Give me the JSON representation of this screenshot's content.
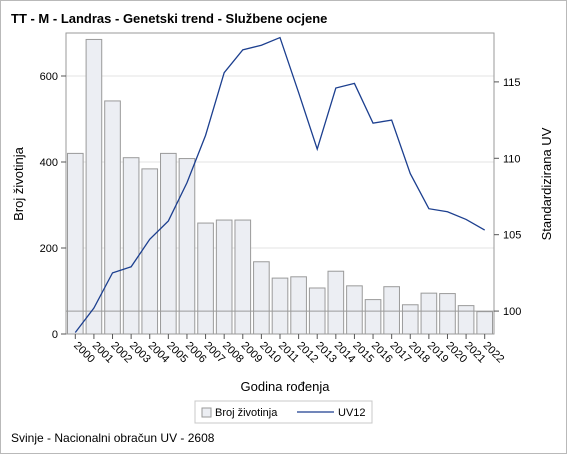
{
  "title": "TT - M - Landras - Genetski trend - Službene ocjene",
  "footer": "Svinje - Nacionalni obračun UV - 2608",
  "chart_data": {
    "type": "bar+line",
    "title": "TT - M - Landras - Genetski trend - Službene ocjene",
    "xlabel": "Godina rođenja",
    "ylabel_left": "Broj životinja",
    "ylabel_right": "Standardizirana UV",
    "categories": [
      "2000",
      "2001",
      "2002",
      "2003",
      "2004",
      "2005",
      "2006",
      "2007",
      "2008",
      "2009",
      "2010",
      "2011",
      "2012",
      "2013",
      "2014",
      "2015",
      "2016",
      "2017",
      "2018",
      "2019",
      "2020",
      "2021",
      "2022"
    ],
    "ylim_left": [
      0,
      700
    ],
    "yticks_left": [
      0,
      200,
      400,
      600
    ],
    "ylim_right": [
      98.5,
      118.2
    ],
    "yticks_right": [
      100,
      105,
      110,
      115
    ],
    "reference_line_right": 100,
    "grid": "horizontal",
    "legend_position": "bottom",
    "series": [
      {
        "name": "Broj životinja",
        "type": "bar",
        "axis": "left",
        "color": "#eceef3",
        "stroke": "#9a9a9a",
        "values": [
          420,
          685,
          542,
          410,
          384,
          420,
          408,
          258,
          265,
          265,
          168,
          130,
          133,
          107,
          146,
          112,
          80,
          110,
          68,
          95,
          94,
          66,
          52
        ]
      },
      {
        "name": "UV12",
        "type": "line",
        "axis": "right",
        "color": "#1c3f8f",
        "values": [
          98.6,
          100.2,
          102.5,
          102.9,
          104.7,
          105.9,
          108.4,
          111.5,
          115.6,
          117.1,
          117.4,
          117.9,
          114.3,
          110.6,
          114.6,
          114.9,
          112.3,
          112.5,
          109.0,
          106.7,
          106.5,
          106.0,
          105.3
        ]
      }
    ]
  }
}
